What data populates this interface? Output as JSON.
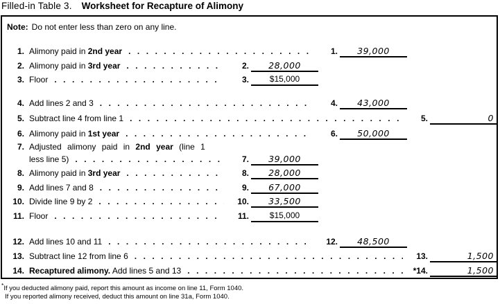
{
  "title": {
    "prefix": "Filled-in Table 3.",
    "main": "Worksheet for Recapture of Alimony"
  },
  "note": {
    "label": "Note:",
    "text": "Do not enter less than zero on any line."
  },
  "worksheet": {
    "rows": [
      {
        "n": 1,
        "num": "1.",
        "entry": "1.",
        "col": "B",
        "value": "39,000",
        "vstyle": "hand",
        "align": "center",
        "segments": [
          {
            "t": "Alimony paid in ",
            "b": false
          },
          {
            "t": "2nd year",
            "b": true
          }
        ]
      },
      {
        "n": 2,
        "num": "2.",
        "entry": "2.",
        "col": "A",
        "value": "28,000",
        "vstyle": "hand",
        "align": "center",
        "segments": [
          {
            "t": "Alimony paid in ",
            "b": false
          },
          {
            "t": "3rd year",
            "b": true
          }
        ]
      },
      {
        "n": 3,
        "num": "3.",
        "entry": "3.",
        "col": "A",
        "value": "$15,000",
        "vstyle": "printed",
        "align": "center",
        "segments": [
          {
            "t": "Floor",
            "b": false
          }
        ]
      },
      {
        "n": 4,
        "num": "4.",
        "entry": "4.",
        "col": "B",
        "value": "43,000",
        "vstyle": "hand",
        "align": "center",
        "segments": [
          {
            "t": "Add lines 2 and 3",
            "b": false
          }
        ]
      },
      {
        "n": 5,
        "num": "5.",
        "entry": "5.",
        "col": "C",
        "value": "0",
        "vstyle": "hand",
        "align": "right",
        "segments": [
          {
            "t": "Subtract line 4 from line 1",
            "b": false
          }
        ]
      },
      {
        "n": 6,
        "num": "6.",
        "entry": "6.",
        "col": "B",
        "value": "50,000",
        "vstyle": "hand",
        "align": "center",
        "segments": [
          {
            "t": "Alimony paid in ",
            "b": false
          },
          {
            "t": "1st year",
            "b": true
          }
        ]
      },
      {
        "n": 7,
        "num": "7.",
        "entry": "7.",
        "col": "A",
        "value": "39,000",
        "vstyle": "hand",
        "align": "center",
        "segments": [
          {
            "t": "Adjusted alimony paid in ",
            "b": false
          },
          {
            "t": "2nd year",
            "b": true
          },
          {
            "t": " (line 1",
            "b": false
          }
        ],
        "segments2": [
          {
            "t": "less line 5)",
            "b": false
          }
        ]
      },
      {
        "n": 8,
        "num": "8.",
        "entry": "8.",
        "col": "A",
        "value": "28,000",
        "vstyle": "hand",
        "align": "center",
        "segments": [
          {
            "t": "Alimony paid in ",
            "b": false
          },
          {
            "t": "3rd year",
            "b": true
          }
        ]
      },
      {
        "n": 9,
        "num": "9.",
        "entry": "9.",
        "col": "A",
        "value": "67,000",
        "vstyle": "hand",
        "align": "center",
        "segments": [
          {
            "t": "Add lines 7 and 8",
            "b": false
          }
        ]
      },
      {
        "n": 10,
        "num": "10.",
        "entry": "10.",
        "col": "A",
        "value": "33,500",
        "vstyle": "hand",
        "align": "center",
        "segments": [
          {
            "t": "Divide line 9 by 2",
            "b": false
          }
        ]
      },
      {
        "n": 11,
        "num": "11.",
        "entry": "11.",
        "col": "A",
        "value": "$15,000",
        "vstyle": "printed",
        "align": "center",
        "segments": [
          {
            "t": "Floor",
            "b": false
          }
        ]
      },
      {
        "n": 12,
        "num": "12.",
        "entry": "12.",
        "col": "B",
        "value": "48,500",
        "vstyle": "hand",
        "align": "center",
        "segments": [
          {
            "t": "Add lines 10 and 11",
            "b": false
          }
        ]
      },
      {
        "n": 13,
        "num": "13.",
        "entry": "13.",
        "col": "C",
        "value": "1,500",
        "vstyle": "hand",
        "align": "right",
        "segments": [
          {
            "t": "Subtract line 12 from line 6",
            "b": false
          }
        ]
      },
      {
        "n": 14,
        "num": "14.",
        "entry": "*14.",
        "col": "C",
        "value": "1,500",
        "vstyle": "hand",
        "align": "right",
        "segments": [
          {
            "t": "Recaptured alimony.",
            "b": true
          },
          {
            "t": " Add lines 5 and 13",
            "b": false
          }
        ]
      }
    ]
  },
  "footnotes": {
    "symbol": "*",
    "lines": [
      "If you deducted alimony paid, report this amount as income on line 11, Form 1040.",
      "If you reported alimony received, deduct this amount on line 31a, Form 1040."
    ]
  },
  "colors": {
    "ink": "#000000",
    "paper": "#ffffff"
  }
}
